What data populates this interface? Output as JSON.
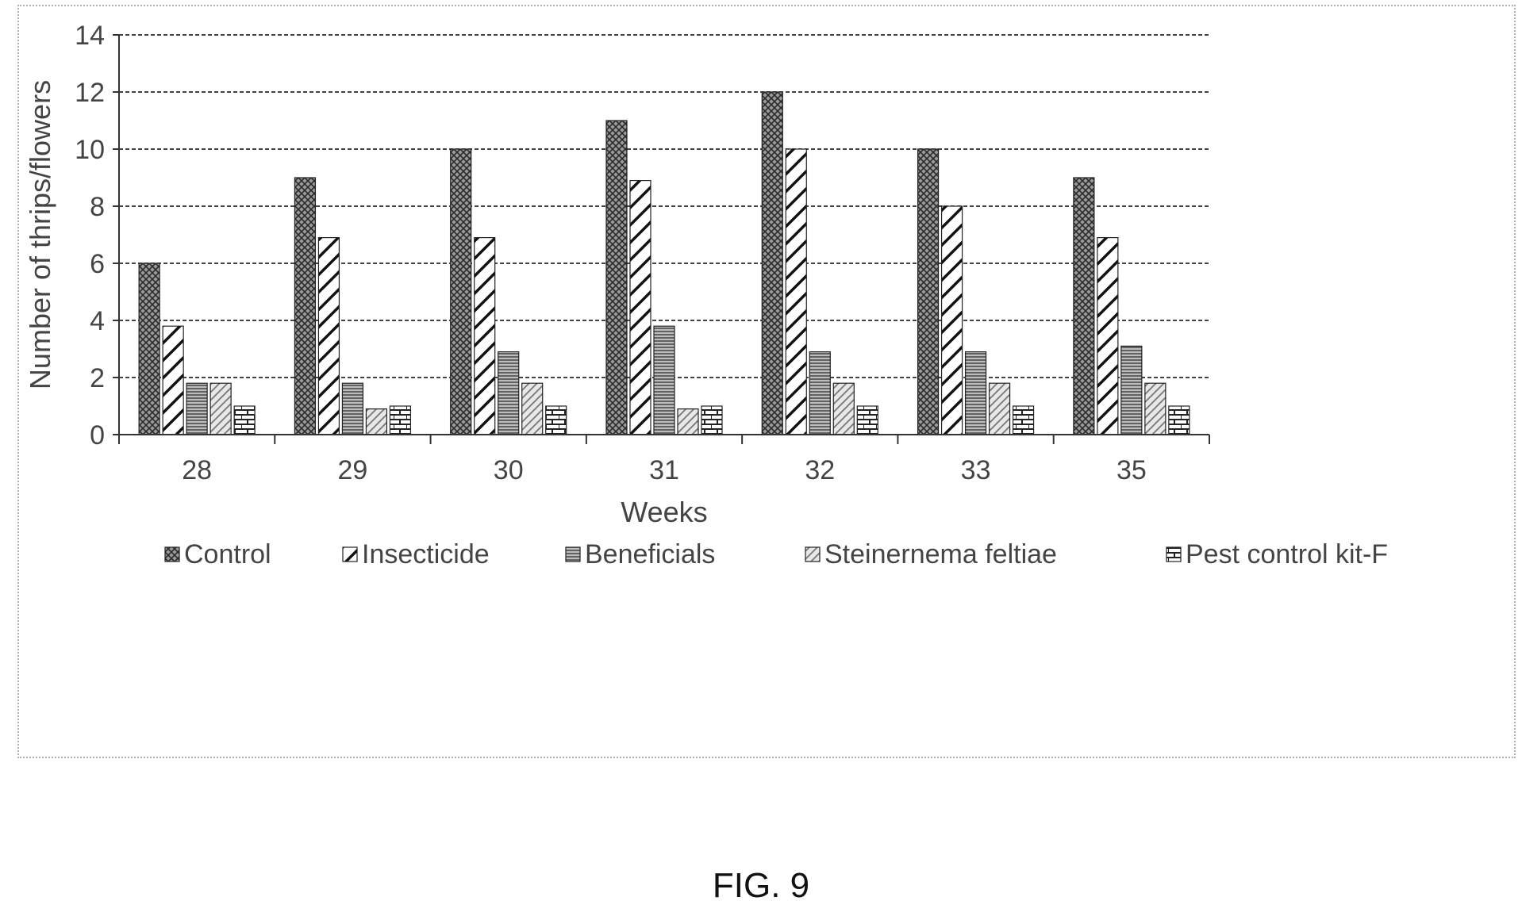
{
  "caption": "FIG. 9",
  "chart_data": {
    "type": "bar",
    "title": "",
    "xlabel": "Weeks",
    "ylabel": "Number of thrips/flowers",
    "ylim": [
      0,
      14
    ],
    "yticks": [
      0,
      2,
      4,
      6,
      8,
      10,
      12,
      14
    ],
    "grid": true,
    "legend_position": "bottom",
    "categories": [
      "28",
      "29",
      "30",
      "31",
      "32",
      "33",
      "35"
    ],
    "series": [
      {
        "name": "Control",
        "pattern": "crosshatch",
        "values": [
          6,
          9,
          10,
          11,
          12,
          10,
          9
        ]
      },
      {
        "name": "Insecticide",
        "pattern": "diagonal",
        "values": [
          3.8,
          6.9,
          6.9,
          8.9,
          10,
          8,
          6.9
        ]
      },
      {
        "name": "Beneficials",
        "pattern": "horizontal",
        "values": [
          1.8,
          1.8,
          2.9,
          3.8,
          2.9,
          2.9,
          3.1
        ]
      },
      {
        "name": "Steinernema feltiae",
        "pattern": "light-diagonal",
        "values": [
          1.8,
          0.9,
          1.8,
          0.9,
          1.8,
          1.8,
          1.8
        ]
      },
      {
        "name": "Pest control kit-F",
        "pattern": "brick",
        "values": [
          1,
          1,
          1,
          1,
          1,
          1,
          1
        ]
      }
    ]
  }
}
